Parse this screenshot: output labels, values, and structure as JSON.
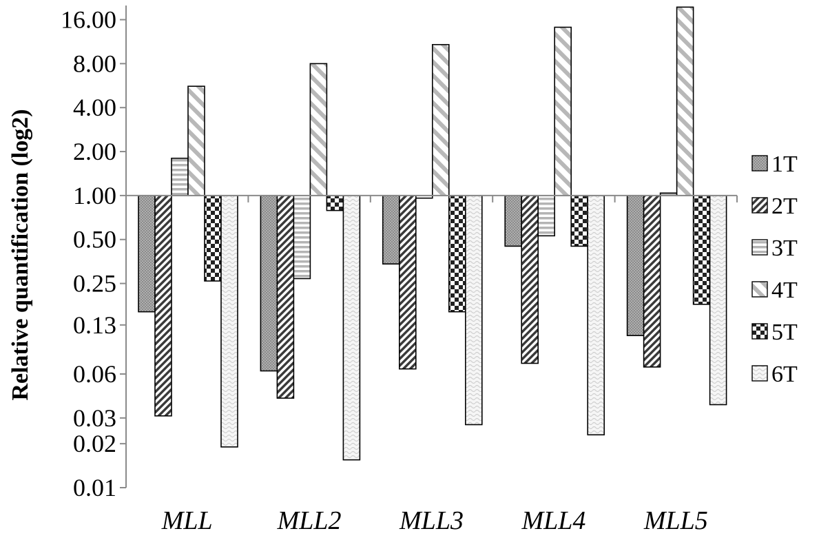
{
  "chart_data": {
    "type": "bar",
    "ylabel": "Relative quantification (log2)",
    "xlabel": "",
    "yscale": "log2",
    "ylim": [
      0.01,
      20
    ],
    "baseline": 1.0,
    "y_ticks": [
      0.01,
      0.02,
      0.03,
      0.06,
      0.13,
      0.25,
      0.5,
      1,
      2,
      4,
      8,
      16
    ],
    "y_tick_labels": [
      "0.01",
      "0.02",
      "0.03",
      "0.06",
      "0.13",
      "0.25",
      "0.50",
      "1.00",
      "2.00",
      "4.00",
      "8.00",
      "16.00"
    ],
    "categories": [
      "MLL",
      "MLL2",
      "MLL3",
      "MLL4",
      "MLL5"
    ],
    "legend_position": "right",
    "series": [
      {
        "name": "1T",
        "pattern": "dots-gray",
        "values": [
          0.16,
          0.063,
          0.34,
          0.45,
          0.11
        ]
      },
      {
        "name": "2T",
        "pattern": "diag-dense",
        "values": [
          0.031,
          0.041,
          0.065,
          0.071,
          0.067
        ]
      },
      {
        "name": "3T",
        "pattern": "horizontal-lines",
        "values": [
          1.8,
          0.27,
          0.96,
          0.53,
          1.04
        ]
      },
      {
        "name": "4T",
        "pattern": "diag-wide",
        "values": [
          5.6,
          8.0,
          10.8,
          14.2,
          19.5
        ]
      },
      {
        "name": "5T",
        "pattern": "checker",
        "values": [
          0.26,
          0.79,
          0.16,
          0.45,
          0.18
        ]
      },
      {
        "name": "6T",
        "pattern": "light-wave",
        "values": [
          0.019,
          0.0155,
          0.027,
          0.023,
          0.037
        ]
      }
    ]
  }
}
